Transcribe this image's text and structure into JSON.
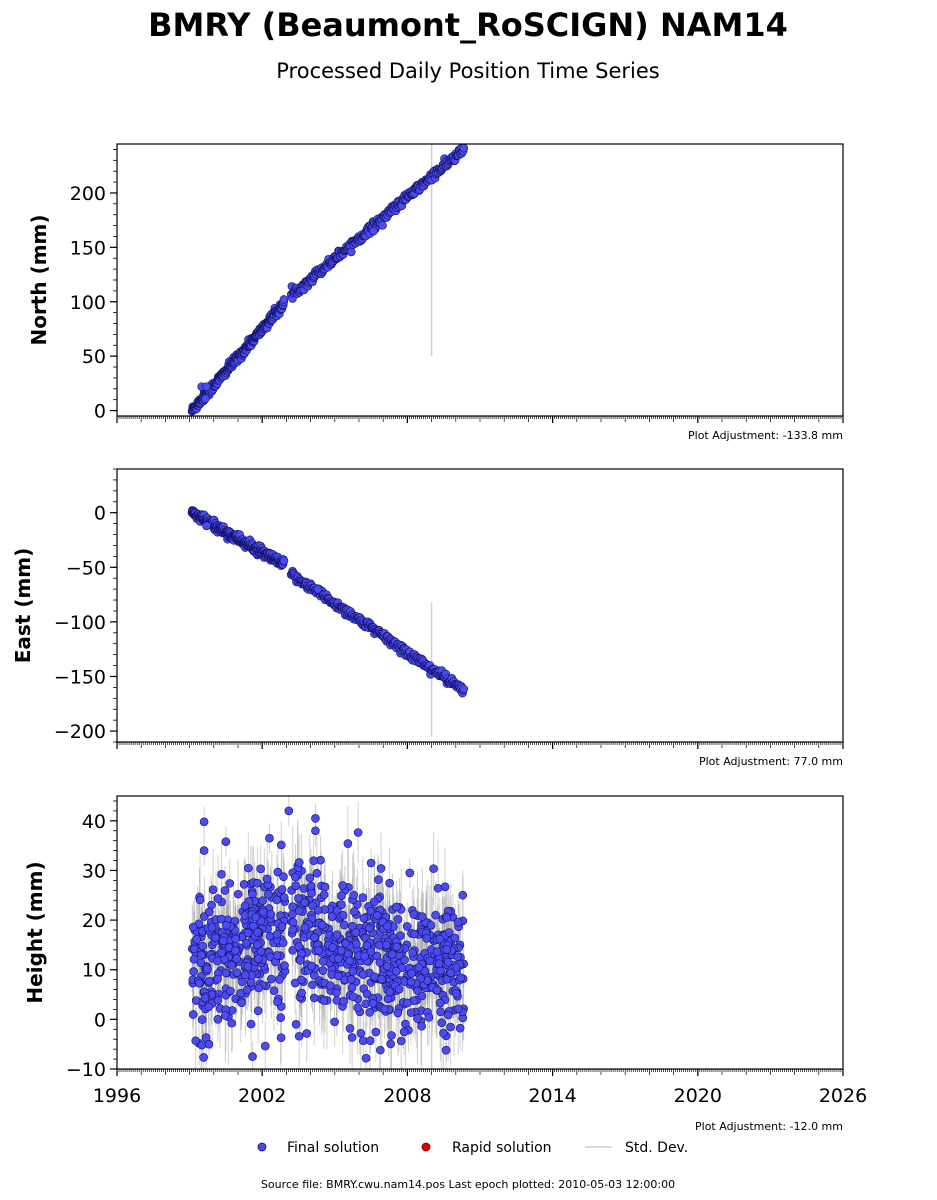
{
  "header": {
    "title": "BMRY (Beaumont_RoSCIGN) NAM14",
    "subtitle": "Processed Daily Position Time Series"
  },
  "legend": {
    "final_label": "Final solution",
    "rapid_label": "Rapid solution",
    "std_label": "Std. Dev."
  },
  "footer": {
    "text": "Source file: BMRY.cwu.nam14.pos  Last epoch plotted: 2010-05-03 12:00:00"
  },
  "colors": {
    "final": "#4b4bf0",
    "final_edge": "#101060",
    "rapid": "#e00000",
    "std": "#9a9a9a"
  },
  "chart_data": [
    {
      "type": "scatter",
      "name": "north",
      "ylabel": "North (mm)",
      "adjustment": "Plot Adjustment: -133.8 mm",
      "xlim": [
        1996,
        2026
      ],
      "ylim": [
        -5,
        245
      ],
      "yticks": [
        0,
        50,
        100,
        150,
        200
      ],
      "xticks": [
        1996,
        2002,
        2008,
        2014,
        2020,
        2026
      ],
      "show_xtick_labels": false,
      "trend_segments": [
        {
          "x": [
            1999.1,
            2002.9
          ],
          "y": [
            0,
            98
          ],
          "noise": 2
        },
        {
          "x": [
            2003.2,
            2010.33
          ],
          "y": [
            106,
            240
          ],
          "noise": 2
        }
      ],
      "outliers": [
        {
          "x": 1999.5,
          "y": 22
        },
        {
          "x": 1999.7,
          "y": 22
        },
        {
          "x": 2006.6,
          "y": 165
        },
        {
          "x": 1999.65,
          "y": 11
        }
      ],
      "std_spike": {
        "x": 2009.0,
        "y": [
          50,
          245
        ]
      },
      "grid": false
    },
    {
      "type": "scatter",
      "name": "east",
      "ylabel": "East (mm)",
      "adjustment": "Plot Adjustment: 77.0 mm",
      "xlim": [
        1996,
        2026
      ],
      "ylim": [
        -210,
        40
      ],
      "yticks": [
        0,
        -50,
        -100,
        -150,
        -200
      ],
      "ytick_labels": [
        "0",
        "−50",
        "−100",
        "−150",
        "−200"
      ],
      "xticks": [
        1996,
        2002,
        2008,
        2014,
        2020,
        2026
      ],
      "show_xtick_labels": false,
      "trend_segments": [
        {
          "x": [
            1999.1,
            2002.9
          ],
          "y": [
            0,
            -48
          ],
          "noise": 2
        },
        {
          "x": [
            2003.2,
            2010.33
          ],
          "y": [
            -56,
            -163
          ],
          "noise": 2
        }
      ],
      "outliers": [
        {
          "x": 1999.7,
          "y": -12
        },
        {
          "x": 2004.3,
          "y": -70
        }
      ],
      "std_spike": {
        "x": 2009.0,
        "y": [
          -205,
          -82
        ]
      },
      "grid": false
    },
    {
      "type": "scatter",
      "name": "height",
      "ylabel": "Height (mm)",
      "adjustment": "Plot Adjustment: -12.0 mm",
      "xlim": [
        1996,
        2026
      ],
      "ylim": [
        -10,
        45
      ],
      "yticks": [
        -10,
        0,
        10,
        20,
        30,
        40
      ],
      "ytick_labels": [
        "−10",
        "0",
        "10",
        "20",
        "30",
        "40"
      ],
      "xticks": [
        1996,
        2002,
        2008,
        2014,
        2020,
        2026
      ],
      "xtick_labels": [
        "1996",
        "2002",
        "2008",
        "2014",
        "2020",
        "2026"
      ],
      "show_xtick_labels": true,
      "data_x_range": [
        1999.1,
        2010.33
      ],
      "gap": [
        2002.95,
        2003.2
      ],
      "mean_profile": [
        {
          "x": 1999.1,
          "y": 10
        },
        {
          "x": 2000.0,
          "y": 14
        },
        {
          "x": 2001.0,
          "y": 15
        },
        {
          "x": 2002.0,
          "y": 17
        },
        {
          "x": 2003.2,
          "y": 19
        },
        {
          "x": 2004.0,
          "y": 18
        },
        {
          "x": 2005.0,
          "y": 14
        },
        {
          "x": 2006.0,
          "y": 13
        },
        {
          "x": 2007.0,
          "y": 12
        },
        {
          "x": 2008.0,
          "y": 11
        },
        {
          "x": 2009.0,
          "y": 10
        },
        {
          "x": 2010.33,
          "y": 10
        }
      ],
      "spread": 7,
      "outliers": [
        {
          "x": 2003.1,
          "y": 42
        },
        {
          "x": 2004.2,
          "y": 40.5
        },
        {
          "x": 1999.6,
          "y": 39.8
        },
        {
          "x": 2004.2,
          "y": 38
        },
        {
          "x": 2002.3,
          "y": 36.5
        },
        {
          "x": 2000.5,
          "y": 35.8
        },
        {
          "x": 1999.6,
          "y": 34
        },
        {
          "x": 2001.6,
          "y": -7.5
        },
        {
          "x": 2003.4,
          "y": -1
        },
        {
          "x": 2008.1,
          "y": 29.5
        },
        {
          "x": 2006.5,
          "y": 31.5
        },
        {
          "x": 1999.8,
          "y": -5
        }
      ],
      "std_spike": {
        "x": 2009.0,
        "y": [
          -10,
          30
        ]
      },
      "grid": false
    }
  ]
}
